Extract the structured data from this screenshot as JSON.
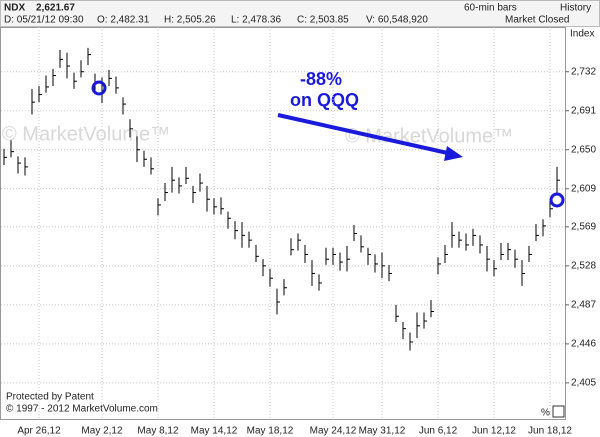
{
  "header": {
    "symbol": "NDX",
    "last": "2,621.67",
    "bars": "60-min bars",
    "history": "History",
    "date": "D: 05/21/12 09:30",
    "open": "O: 2,482.31",
    "high": "H: 2,505.26",
    "low": "L: 2,478.36",
    "close": "C: 2,503.85",
    "volume": "V: 60,548,920",
    "status": "Market Closed"
  },
  "chart_data": {
    "type": "ohlc",
    "axis_label": "Index",
    "color": "#000000",
    "grid": true,
    "annotation": [
      "-88%",
      "on QQQ"
    ],
    "watermark": "© MarketVolume™",
    "footer": [
      "Protected by Patent",
      "© 1997 - 2012 MarketVolume.com"
    ],
    "corner_label": "%",
    "categories": [
      null,
      null,
      null,
      null,
      null,
      "Apr 26,12",
      null,
      null,
      null,
      null,
      null,
      null,
      null,
      null,
      "May 2,12",
      null,
      null,
      null,
      null,
      null,
      null,
      null,
      "May 8,12",
      null,
      null,
      null,
      null,
      null,
      null,
      null,
      "May 14,12",
      null,
      null,
      null,
      null,
      null,
      null,
      null,
      "May 18,12",
      null,
      null,
      null,
      null,
      null,
      null,
      null,
      null,
      "May 24,12",
      null,
      null,
      null,
      null,
      null,
      null,
      "May 31,12",
      null,
      null,
      null,
      null,
      null,
      null,
      null,
      "Jun 6,12",
      null,
      null,
      null,
      null,
      null,
      null,
      null,
      "Jun 12,12",
      null,
      null,
      null,
      null,
      null,
      null,
      null,
      "Jun 18,12",
      null
    ],
    "high": [
      2651,
      2660,
      2643,
      2642,
      2714,
      2717,
      2728,
      2735,
      2755,
      2752,
      2731,
      2744,
      2757,
      2730,
      2726,
      2734,
      2727,
      2705,
      2682,
      2664,
      2649,
      2642,
      2599,
      2615,
      2632,
      2621,
      2632,
      2612,
      2625,
      2612,
      2599,
      2600,
      2585,
      2575,
      2574,
      2564,
      2550,
      2535,
      2525,
      2504,
      2514,
      2557,
      2562,
      2550,
      2534,
      2519,
      2547,
      2547,
      2542,
      2549,
      2571,
      2560,
      2547,
      2540,
      2542,
      2529,
      2487,
      2469,
      2458,
      2479,
      2479,
      2492,
      2537,
      2550,
      2574,
      2564,
      2562,
      2567,
      2560,
      2549,
      2534,
      2552,
      2552,
      2545,
      2534,
      2549,
      2572,
      2577,
      2598,
      2632
    ],
    "low": [
      2634,
      2642,
      2625,
      2623,
      2687,
      2700,
      2710,
      2717,
      2736,
      2725,
      2714,
      2726,
      2739,
      2711,
      2699,
      2717,
      2709,
      2687,
      2663,
      2637,
      2632,
      2624,
      2581,
      2596,
      2605,
      2604,
      2614,
      2594,
      2606,
      2585,
      2582,
      2582,
      2567,
      2556,
      2547,
      2547,
      2532,
      2517,
      2506,
      2477,
      2497,
      2539,
      2544,
      2531,
      2507,
      2502,
      2529,
      2529,
      2523,
      2522,
      2554,
      2542,
      2529,
      2521,
      2515,
      2512,
      2469,
      2451,
      2439,
      2452,
      2462,
      2474,
      2519,
      2531,
      2547,
      2547,
      2544,
      2549,
      2541,
      2522,
      2517,
      2534,
      2534,
      2526,
      2507,
      2532,
      2554,
      2559,
      2579,
      2605
    ],
    "close": [
      2642,
      2648,
      2636,
      2632,
      2700,
      2708,
      2716,
      2728,
      2745,
      2738,
      2722,
      2732,
      2750,
      2720,
      2712,
      2725,
      2715,
      2698,
      2672,
      2650,
      2640,
      2630,
      2592,
      2605,
      2618,
      2612,
      2620,
      2605,
      2615,
      2598,
      2590,
      2588,
      2578,
      2565,
      2560,
      2555,
      2538,
      2528,
      2515,
      2490,
      2505,
      2545,
      2555,
      2540,
      2520,
      2510,
      2535,
      2540,
      2532,
      2535,
      2562,
      2548,
      2540,
      2530,
      2528,
      2520,
      2475,
      2462,
      2448,
      2465,
      2470,
      2480,
      2530,
      2540,
      2560,
      2555,
      2550,
      2560,
      2550,
      2535,
      2525,
      2540,
      2545,
      2535,
      2520,
      2540,
      2560,
      2570,
      2588,
      2618
    ],
    "ylim": [
      2366,
      2779
    ],
    "yticks": [
      {
        "value": 2405,
        "label": "2,405"
      },
      {
        "value": 2446,
        "label": "2,446"
      },
      {
        "value": 2487,
        "label": "2,487"
      },
      {
        "value": 2528,
        "label": "2,528"
      },
      {
        "value": 2569,
        "label": "2,569"
      },
      {
        "value": 2609,
        "label": "2,609"
      },
      {
        "value": 2650,
        "label": "2,650"
      },
      {
        "value": 2691,
        "label": "2,691"
      },
      {
        "value": 2732,
        "label": "2,732"
      }
    ]
  }
}
